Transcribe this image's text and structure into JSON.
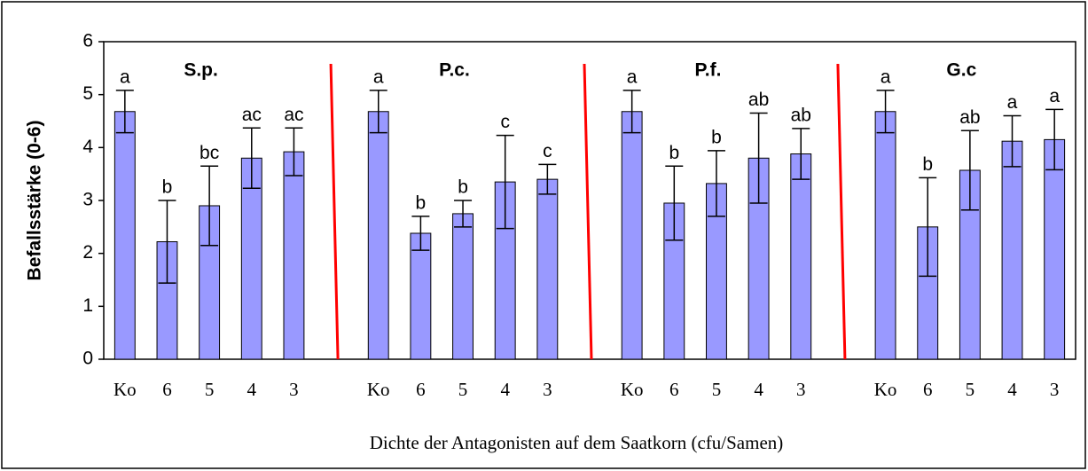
{
  "chart_data": {
    "type": "bar",
    "ylabel": "Befallsstärke (0-6)",
    "xlabel": "Dichte der Antagonisten auf dem Saatkorn (cfu/Samen)",
    "group_labels": [
      "S.p.",
      "P.c.",
      "P.f.",
      "G.c"
    ],
    "categories": [
      "Ko",
      "6",
      "5",
      "4",
      "3",
      null,
      "Ko",
      "6",
      "5",
      "4",
      "3",
      null,
      "Ko",
      "6",
      "5",
      "4",
      "3",
      null,
      "Ko",
      "6",
      "5",
      "4",
      "3"
    ],
    "values": [
      4.68,
      2.22,
      2.9,
      3.8,
      3.92,
      null,
      4.68,
      2.38,
      2.75,
      3.35,
      3.4,
      null,
      4.68,
      2.95,
      3.32,
      3.8,
      3.88,
      null,
      4.68,
      2.5,
      3.57,
      4.12,
      4.15
    ],
    "errors": [
      0.4,
      0.78,
      0.75,
      0.57,
      0.45,
      null,
      0.4,
      0.32,
      0.25,
      0.88,
      0.28,
      null,
      0.4,
      0.7,
      0.62,
      0.85,
      0.48,
      null,
      0.4,
      0.93,
      0.75,
      0.48,
      0.57
    ],
    "annotations": [
      "a",
      "b",
      "bc",
      "ac",
      "ac",
      null,
      "a",
      "b",
      "b",
      "c",
      "c",
      null,
      "a",
      "b",
      "b",
      "ab",
      "ab",
      null,
      "a",
      "b",
      "ab",
      "a",
      "a"
    ],
    "color": "#9999ff",
    "ylim": [
      0,
      6
    ],
    "yticks": [
      0,
      1,
      2,
      3,
      4,
      5,
      6
    ],
    "grid": false
  }
}
